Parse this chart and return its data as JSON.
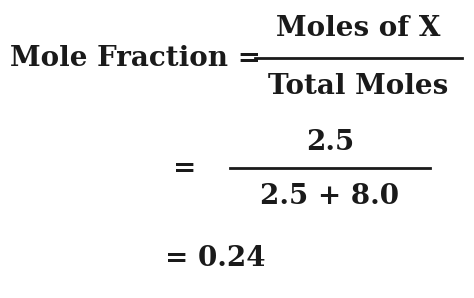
{
  "bg_color": "#ffffff",
  "text_color": "#1a1a1a",
  "line1_left": "Mole Fraction = ",
  "line1_numerator": "Moles of X",
  "line1_denominator": "Total Moles",
  "line2_equals": "=",
  "line2_numerator": "2.5",
  "line2_denominator": "2.5 + 8.0",
  "line3": "= 0.24",
  "font_size_main": 20,
  "fig_width": 4.74,
  "fig_height": 2.98,
  "dpi": 100
}
